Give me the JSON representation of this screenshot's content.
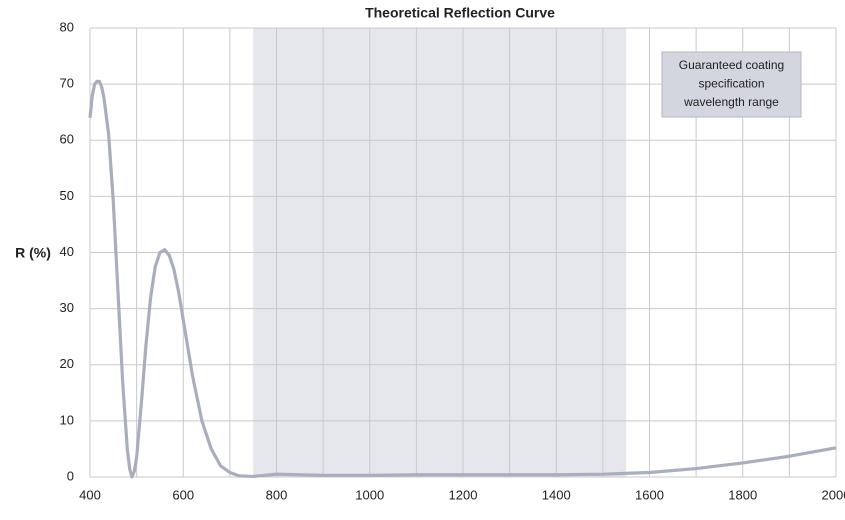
{
  "chart_data": {
    "type": "line",
    "title": "Theoretical Reflection Curve",
    "y_label": "R (%)",
    "x": [
      400,
      405,
      410,
      415,
      420,
      425,
      430,
      440,
      450,
      460,
      470,
      480,
      485,
      490,
      495,
      500,
      510,
      520,
      530,
      540,
      550,
      560,
      570,
      580,
      590,
      600,
      620,
      640,
      660,
      680,
      700,
      720,
      750,
      800,
      900,
      1000,
      1100,
      1200,
      1300,
      1400,
      1500,
      1600,
      1700,
      1800,
      1900,
      2000
    ],
    "series": [
      {
        "name": "R (%)",
        "color": "#a9adc0",
        "values": [
          64,
          68,
          70,
          70.5,
          70.5,
          69.5,
          67.5,
          61,
          49,
          33,
          17,
          5,
          1.5,
          0,
          1,
          3.5,
          13,
          23.5,
          32,
          37.5,
          40,
          40.5,
          39.5,
          37,
          33,
          28,
          18,
          10,
          5,
          2,
          0.8,
          0.2,
          0.1,
          0.5,
          0.3,
          0.3,
          0.4,
          0.4,
          0.4,
          0.4,
          0.5,
          0.8,
          1.5,
          2.5,
          3.7,
          5.2
        ]
      }
    ],
    "xlim": [
      400,
      2000
    ],
    "ylim": [
      0,
      80
    ],
    "xticks": [
      400,
      600,
      800,
      1000,
      1200,
      1400,
      1600,
      1800,
      2000
    ],
    "yticks": [
      0,
      10,
      20,
      30,
      40,
      50,
      60,
      70,
      80
    ],
    "grid": true,
    "band": {
      "range": [
        750,
        1550
      ],
      "color": "#e6e7ec",
      "label": [
        "Guaranteed coating",
        "specification",
        "wavelength range"
      ]
    }
  }
}
